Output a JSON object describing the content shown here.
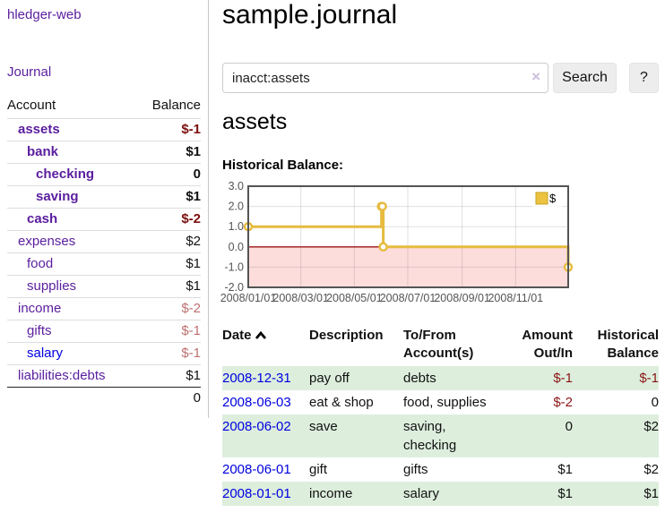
{
  "app": {
    "brand": "hledger-web",
    "nav_journal": "Journal"
  },
  "sidebar": {
    "header": {
      "account": "Account",
      "balance": "Balance"
    },
    "accounts": [
      {
        "name": "assets",
        "indent": 0,
        "balance": "$-1",
        "bold": true
      },
      {
        "name": "bank",
        "indent": 1,
        "balance": "$1",
        "bold": true
      },
      {
        "name": "checking",
        "indent": 2,
        "balance": "0",
        "bold": true
      },
      {
        "name": "saving",
        "indent": 2,
        "balance": "$1",
        "bold": true
      },
      {
        "name": "cash",
        "indent": 1,
        "balance": "$-2",
        "bold": true
      },
      {
        "name": "expenses",
        "indent": 0,
        "balance": "$2",
        "bold": false
      },
      {
        "name": "food",
        "indent": 1,
        "balance": "$1",
        "bold": false
      },
      {
        "name": "supplies",
        "indent": 1,
        "balance": "$1",
        "bold": false
      },
      {
        "name": "income",
        "indent": 0,
        "balance": "$-2",
        "bold": false
      },
      {
        "name": "gifts",
        "indent": 1,
        "balance": "$-1",
        "bold": false
      },
      {
        "name": "salary",
        "indent": 1,
        "balance": "$-1",
        "bold": false,
        "link_color": "blue"
      },
      {
        "name": "liabilities:debts",
        "indent": 0,
        "balance": "$1",
        "bold": false
      }
    ],
    "total": "0"
  },
  "header": {
    "title": "sample.journal"
  },
  "search": {
    "value": "inacct:assets",
    "clear_label": "×",
    "button_label": "Search",
    "help_label": "?"
  },
  "account_page": {
    "heading": "assets",
    "chart_label": "Historical Balance:"
  },
  "chart_data": {
    "type": "line",
    "step": true,
    "series": [
      {
        "name": "$",
        "color": "#e6bb3f",
        "points": [
          [
            "2008-01-01",
            1
          ],
          [
            "2008-06-01",
            2
          ],
          [
            "2008-06-02",
            2
          ],
          [
            "2008-06-03",
            0
          ],
          [
            "2008-12-31",
            -1
          ]
        ]
      }
    ],
    "x_range": [
      "2008-01-01",
      "2008-12-31"
    ],
    "x_ticks": [
      {
        "date": "2008-01-01",
        "label": "2008/01/01"
      },
      {
        "date": "2008-03-01",
        "label": "2008/03/01"
      },
      {
        "date": "2008-05-01",
        "label": "2008/05/01"
      },
      {
        "date": "2008-07-01",
        "label": "2008/07/01"
      },
      {
        "date": "2008-09-01",
        "label": "2008/09/01"
      },
      {
        "date": "2008-11-01",
        "label": "2008/11/01"
      }
    ],
    "y_ticks": [
      "3.0",
      "2.0",
      "1.0",
      "0.0",
      "-1.0",
      "-2.0"
    ],
    "ylim": [
      -2,
      3
    ],
    "legend": "$",
    "legend_position": "top-right",
    "colors": {
      "line": "#e6bb3f",
      "marker_fill": "#ffffff",
      "negative_band": "#fddcdc",
      "zero_line": "#991515",
      "border": "#545454",
      "tick_text": "#545454",
      "grid": "rgba(84,84,84,0.18)",
      "legend_swatch": "#edc240"
    }
  },
  "register": {
    "headers": {
      "date": "Date",
      "description": "Description",
      "accounts": "To/From Account(s)",
      "amount": "Amount Out/In",
      "balance": "Historical Balance"
    },
    "rows": [
      {
        "date": "2008-12-31",
        "description": "pay off",
        "accounts": "debts",
        "amount": "$-1",
        "balance": "$-1"
      },
      {
        "date": "2008-06-03",
        "description": "eat & shop",
        "accounts": "food, supplies",
        "amount": "$-2",
        "balance": "0"
      },
      {
        "date": "2008-06-02",
        "description": "save",
        "accounts": "saving, checking",
        "amount": "0",
        "balance": "$2"
      },
      {
        "date": "2008-06-01",
        "description": "gift",
        "accounts": "gifts",
        "amount": "$1",
        "balance": "$2"
      },
      {
        "date": "2008-01-01",
        "description": "income",
        "accounts": "salary",
        "amount": "$1",
        "balance": "$1"
      }
    ]
  }
}
